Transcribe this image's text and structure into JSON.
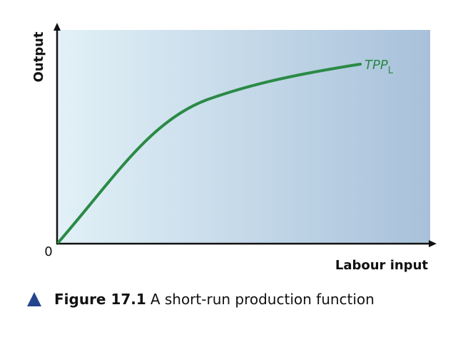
{
  "axes": {
    "y_label": "Output",
    "x_label": "Labour input",
    "origin": "0"
  },
  "curve": {
    "label": "TPP",
    "subscript": "L"
  },
  "caption": {
    "number": "Figure 17.1",
    "text": "A short-run production function"
  }
}
